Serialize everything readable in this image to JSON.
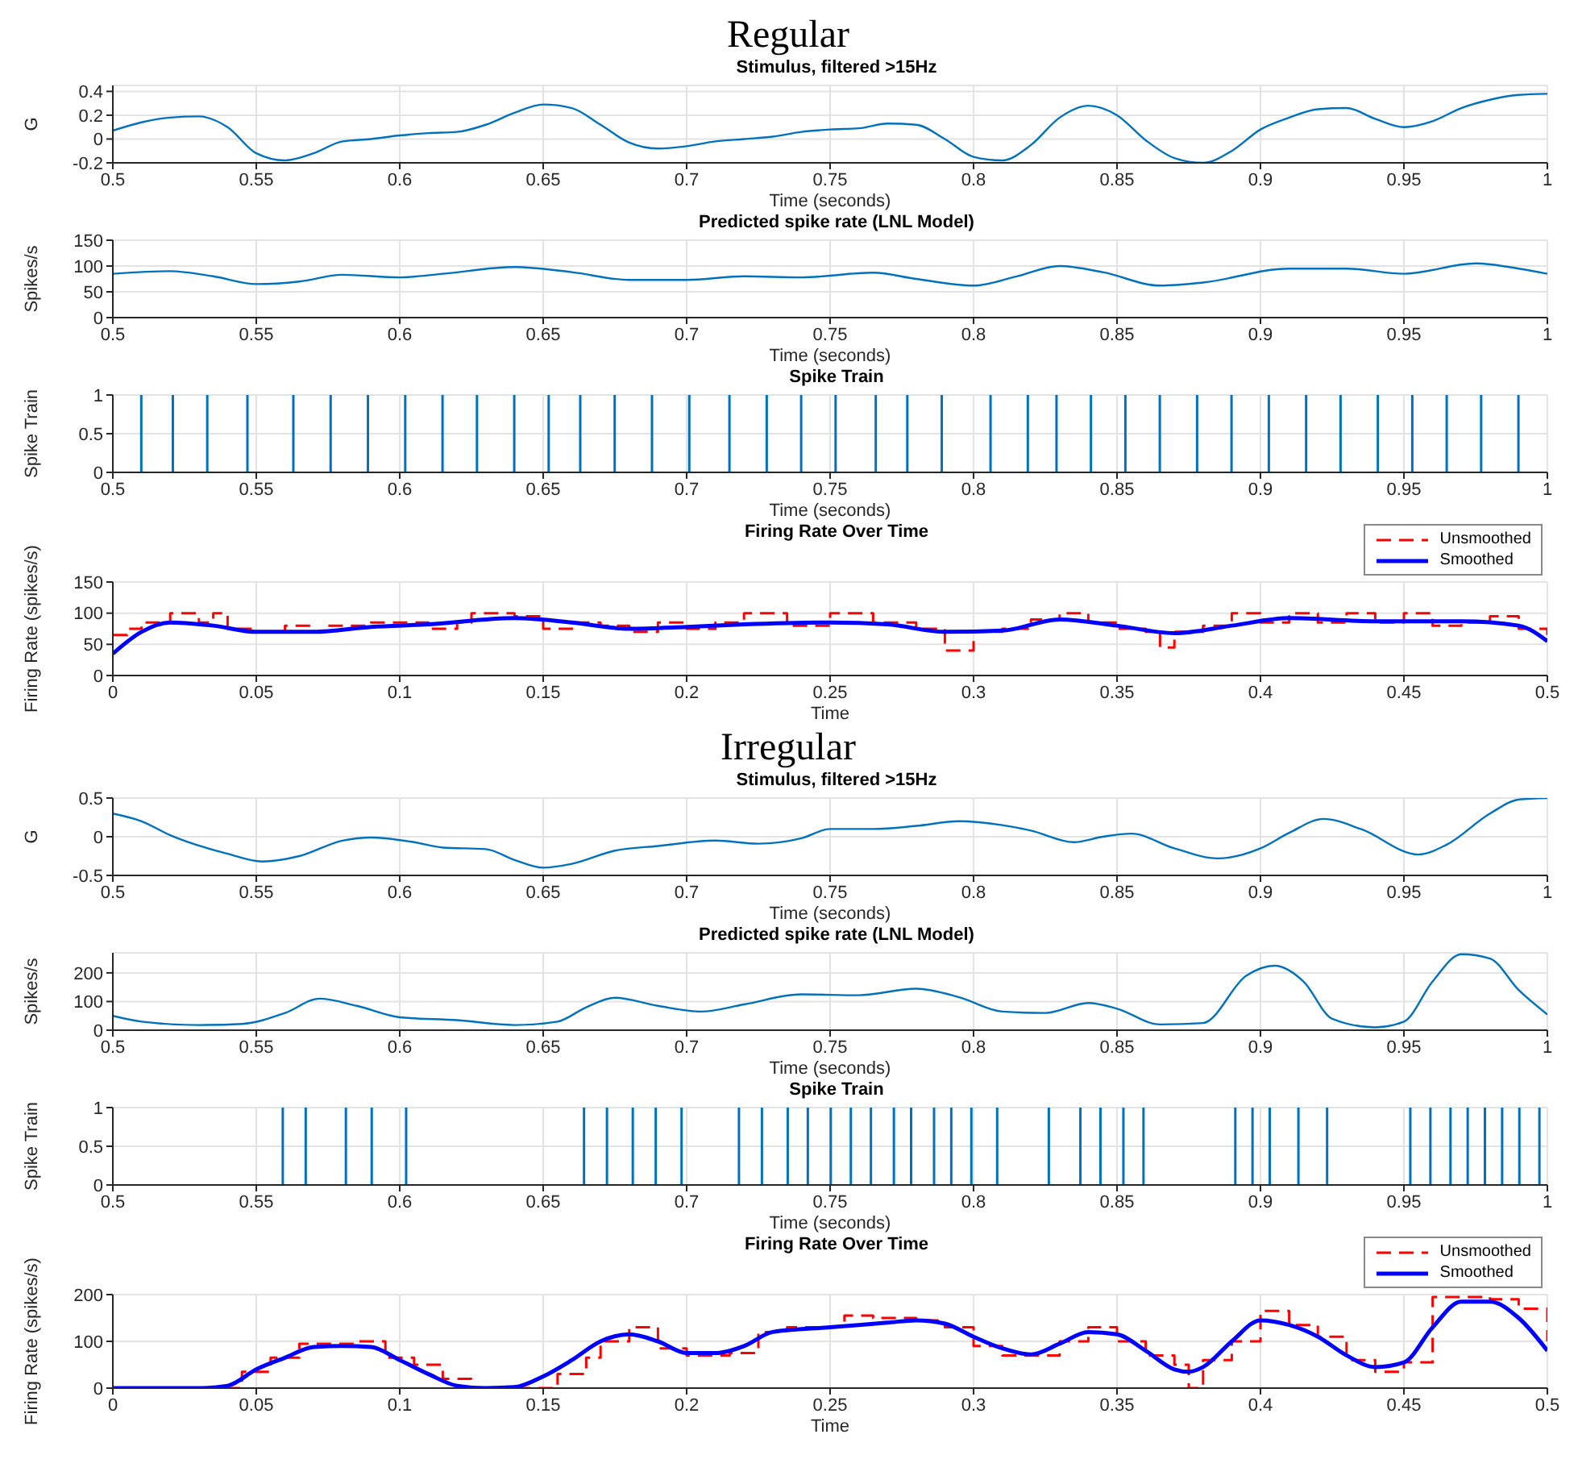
{
  "chart_data": [
    {
      "type": "line",
      "title": "Regular",
      "subtitle": "Stimulus, filtered >15Hz",
      "xlabel": "Time (seconds)",
      "ylabel": "G",
      "xlim": [
        0.5,
        1
      ],
      "xticks": [
        0.5,
        0.55,
        0.6,
        0.65,
        0.7,
        0.75,
        0.8,
        0.85,
        0.9,
        0.95,
        1
      ],
      "ylim": [
        -0.2,
        0.45
      ],
      "yticks": [
        -0.2,
        0,
        0.2,
        0.4
      ],
      "grid": true,
      "series": [
        {
          "color": "#0072bd",
          "x": [
            0.5,
            0.51,
            0.52,
            0.53,
            0.54,
            0.55,
            0.56,
            0.57,
            0.58,
            0.59,
            0.6,
            0.61,
            0.62,
            0.63,
            0.64,
            0.65,
            0.66,
            0.67,
            0.68,
            0.69,
            0.7,
            0.71,
            0.72,
            0.73,
            0.74,
            0.75,
            0.76,
            0.77,
            0.78,
            0.79,
            0.8,
            0.81,
            0.82,
            0.83,
            0.84,
            0.85,
            0.86,
            0.87,
            0.88,
            0.89,
            0.9,
            0.91,
            0.92,
            0.93,
            0.94,
            0.95,
            0.96,
            0.97,
            0.98,
            0.99,
            1
          ],
          "values": [
            0.07,
            0.14,
            0.18,
            0.19,
            0.1,
            -0.12,
            -0.18,
            -0.12,
            -0.02,
            0,
            0.03,
            0.05,
            0.06,
            0.12,
            0.22,
            0.29,
            0.26,
            0.12,
            -0.03,
            -0.08,
            -0.06,
            -0.02,
            0,
            0.02,
            0.06,
            0.08,
            0.09,
            0.13,
            0.12,
            0,
            -0.15,
            -0.18,
            -0.05,
            0.18,
            0.28,
            0.2,
            -0.01,
            -0.16,
            -0.2,
            -0.1,
            0.08,
            0.18,
            0.25,
            0.26,
            0.17,
            0.1,
            0.15,
            0.26,
            0.33,
            0.37,
            0.38
          ]
        }
      ]
    },
    {
      "type": "line",
      "title": "Predicted spike rate (LNL Model)",
      "xlabel": "Time (seconds)",
      "ylabel": "Spikes/s",
      "xlim": [
        0.5,
        1
      ],
      "xticks": [
        0.5,
        0.55,
        0.6,
        0.65,
        0.7,
        0.75,
        0.8,
        0.85,
        0.9,
        0.95,
        1
      ],
      "ylim": [
        0,
        150
      ],
      "yticks": [
        0,
        50,
        100,
        150
      ],
      "grid": true,
      "series": [
        {
          "color": "#0072bd",
          "x": [
            0.5,
            0.52,
            0.535,
            0.55,
            0.565,
            0.58,
            0.6,
            0.615,
            0.64,
            0.66,
            0.68,
            0.7,
            0.72,
            0.74,
            0.765,
            0.78,
            0.8,
            0.815,
            0.83,
            0.845,
            0.865,
            0.88,
            0.91,
            0.93,
            0.95,
            0.975,
            0.99,
            1
          ],
          "values": [
            85,
            90,
            80,
            65,
            70,
            83,
            78,
            85,
            98,
            88,
            73,
            73,
            80,
            78,
            87,
            75,
            62,
            80,
            100,
            88,
            62,
            68,
            95,
            95,
            85,
            105,
            95,
            85
          ]
        }
      ]
    },
    {
      "type": "bar",
      "title": "Spike Train",
      "xlabel": "Time (seconds)",
      "ylabel": "Spike Train",
      "xlim": [
        0.5,
        1
      ],
      "xticks": [
        0.5,
        0.55,
        0.6,
        0.65,
        0.7,
        0.75,
        0.8,
        0.85,
        0.9,
        0.95,
        1
      ],
      "ylim": [
        0,
        1
      ],
      "yticks": [
        0,
        0.5,
        1
      ],
      "grid": true,
      "series": [
        {
          "color": "#0072bd",
          "x": [
            0.51,
            0.521,
            0.533,
            0.547,
            0.563,
            0.576,
            0.589,
            0.602,
            0.615,
            0.627,
            0.64,
            0.652,
            0.663,
            0.675,
            0.688,
            0.701,
            0.715,
            0.728,
            0.74,
            0.752,
            0.766,
            0.777,
            0.789,
            0.806,
            0.819,
            0.829,
            0.841,
            0.853,
            0.865,
            0.878,
            0.89,
            0.903,
            0.916,
            0.928,
            0.941,
            0.953,
            0.965,
            0.977,
            0.99
          ],
          "values": [
            1,
            1,
            1,
            1,
            1,
            1,
            1,
            1,
            1,
            1,
            1,
            1,
            1,
            1,
            1,
            1,
            1,
            1,
            1,
            1,
            1,
            1,
            1,
            1,
            1,
            1,
            1,
            1,
            1,
            1,
            1,
            1,
            1,
            1,
            1,
            1,
            1,
            1,
            1
          ]
        }
      ]
    },
    {
      "type": "line",
      "title": "Firing Rate Over Time",
      "xlabel": "Time",
      "ylabel": "Firing Rate (spikes/s)",
      "xlim": [
        0,
        0.5
      ],
      "xticks": [
        0,
        0.05,
        0.1,
        0.15,
        0.2,
        0.25,
        0.3,
        0.35,
        0.4,
        0.45,
        0.5
      ],
      "ylim": [
        0,
        150
      ],
      "yticks": [
        0,
        50,
        100,
        150
      ],
      "grid": true,
      "legend": "top right",
      "series": [
        {
          "name": "Unsmoothed",
          "type": "step",
          "line_style": "dashed",
          "color": "#ff0000",
          "x": [
            0,
            0.005,
            0.01,
            0.02,
            0.03,
            0.035,
            0.04,
            0.05,
            0.06,
            0.07,
            0.075,
            0.09,
            0.1,
            0.11,
            0.12,
            0.125,
            0.135,
            0.14,
            0.15,
            0.16,
            0.17,
            0.18,
            0.19,
            0.2,
            0.21,
            0.22,
            0.235,
            0.25,
            0.265,
            0.28,
            0.29,
            0.3,
            0.31,
            0.32,
            0.33,
            0.34,
            0.35,
            0.36,
            0.365,
            0.37,
            0.38,
            0.39,
            0.4,
            0.41,
            0.42,
            0.43,
            0.44,
            0.45,
            0.46,
            0.47,
            0.48,
            0.49,
            0.5
          ],
          "values": [
            65,
            75,
            85,
            100,
            85,
            100,
            75,
            70,
            80,
            70,
            80,
            85,
            85,
            75,
            85,
            100,
            100,
            95,
            75,
            85,
            80,
            70,
            85,
            75,
            85,
            100,
            80,
            100,
            85,
            75,
            40,
            70,
            75,
            90,
            100,
            85,
            75,
            70,
            45,
            70,
            80,
            100,
            85,
            100,
            85,
            100,
            85,
            100,
            80,
            85,
            95,
            75,
            65
          ]
        },
        {
          "name": "Smoothed",
          "type": "line",
          "color": "#0000ff",
          "x": [
            0,
            0.01,
            0.02,
            0.035,
            0.05,
            0.07,
            0.09,
            0.11,
            0.14,
            0.16,
            0.18,
            0.2,
            0.22,
            0.25,
            0.27,
            0.29,
            0.31,
            0.33,
            0.35,
            0.37,
            0.39,
            0.41,
            0.44,
            0.47,
            0.49,
            0.5
          ],
          "values": [
            35,
            70,
            85,
            80,
            70,
            70,
            78,
            82,
            92,
            85,
            75,
            78,
            82,
            85,
            82,
            70,
            72,
            90,
            80,
            68,
            80,
            92,
            87,
            87,
            80,
            55
          ]
        }
      ]
    },
    {
      "type": "line",
      "title": "Irregular",
      "subtitle": "Stimulus, filtered >15Hz",
      "xlabel": "Time (seconds)",
      "ylabel": "G",
      "xlim": [
        0.5,
        1
      ],
      "xticks": [
        0.5,
        0.55,
        0.6,
        0.65,
        0.7,
        0.75,
        0.8,
        0.85,
        0.9,
        0.95,
        1
      ],
      "ylim": [
        -0.5,
        0.5
      ],
      "yticks": [
        -0.5,
        0,
        0.5
      ],
      "grid": true,
      "series": [
        {
          "color": "#0072bd",
          "x": [
            0.5,
            0.51,
            0.52,
            0.54,
            0.552,
            0.565,
            0.58,
            0.59,
            0.605,
            0.615,
            0.63,
            0.64,
            0.65,
            0.66,
            0.675,
            0.69,
            0.71,
            0.725,
            0.74,
            0.75,
            0.765,
            0.78,
            0.795,
            0.81,
            0.82,
            0.835,
            0.845,
            0.855,
            0.87,
            0.885,
            0.9,
            0.91,
            0.922,
            0.935,
            0.955,
            0.965,
            0.98,
            0.99,
            1
          ],
          "values": [
            0.3,
            0.2,
            0.02,
            -0.22,
            -0.32,
            -0.25,
            -0.05,
            -0.01,
            -0.07,
            -0.14,
            -0.16,
            -0.3,
            -0.4,
            -0.35,
            -0.18,
            -0.12,
            -0.05,
            -0.09,
            -0.02,
            0.1,
            0.1,
            0.14,
            0.2,
            0.15,
            0.08,
            -0.07,
            0,
            0.04,
            -0.15,
            -0.28,
            -0.15,
            0.05,
            0.23,
            0.1,
            -0.23,
            -0.1,
            0.3,
            0.48,
            0.5
          ]
        }
      ]
    },
    {
      "type": "line",
      "title": "Predicted spike rate (LNL Model)",
      "xlabel": "Time (seconds)",
      "ylabel": "Spikes/s",
      "xlim": [
        0.5,
        1
      ],
      "xticks": [
        0.5,
        0.55,
        0.6,
        0.65,
        0.7,
        0.75,
        0.8,
        0.85,
        0.9,
        0.95,
        1
      ],
      "ylim": [
        0,
        270
      ],
      "yticks": [
        0,
        100,
        200
      ],
      "grid": true,
      "series": [
        {
          "color": "#0072bd",
          "x": [
            0.5,
            0.51,
            0.53,
            0.545,
            0.56,
            0.572,
            0.585,
            0.6,
            0.62,
            0.64,
            0.655,
            0.665,
            0.675,
            0.69,
            0.705,
            0.72,
            0.74,
            0.76,
            0.78,
            0.795,
            0.81,
            0.825,
            0.84,
            0.85,
            0.865,
            0.88,
            0.895,
            0.905,
            0.915,
            0.925,
            0.94,
            0.95,
            0.96,
            0.97,
            0.98,
            0.99,
            1
          ],
          "values": [
            50,
            30,
            18,
            22,
            60,
            110,
            85,
            45,
            35,
            18,
            30,
            80,
            113,
            85,
            65,
            90,
            125,
            122,
            145,
            115,
            65,
            60,
            95,
            75,
            20,
            25,
            190,
            225,
            170,
            40,
            10,
            30,
            170,
            265,
            250,
            140,
            55
          ]
        }
      ]
    },
    {
      "type": "bar",
      "title": "Spike Train",
      "xlabel": "Time (seconds)",
      "ylabel": "Spike Train",
      "xlim": [
        0.5,
        1
      ],
      "xticks": [
        0.5,
        0.55,
        0.6,
        0.65,
        0.7,
        0.75,
        0.8,
        0.85,
        0.9,
        0.95,
        1
      ],
      "ylim": [
        0,
        1
      ],
      "yticks": [
        0,
        0.5,
        1
      ],
      "grid": true,
      "series": [
        {
          "color": "#0072bd",
          "x": [
            0.559,
            0.567,
            0.581,
            0.59,
            0.602,
            0.664,
            0.672,
            0.681,
            0.689,
            0.698,
            0.718,
            0.726,
            0.735,
            0.742,
            0.75,
            0.757,
            0.764,
            0.772,
            0.778,
            0.786,
            0.792,
            0.799,
            0.808,
            0.826,
            0.837,
            0.844,
            0.852,
            0.859,
            0.891,
            0.897,
            0.903,
            0.913,
            0.923,
            0.952,
            0.959,
            0.966,
            0.972,
            0.978,
            0.984,
            0.99,
            0.997
          ],
          "values": [
            1,
            1,
            1,
            1,
            1,
            1,
            1,
            1,
            1,
            1,
            1,
            1,
            1,
            1,
            1,
            1,
            1,
            1,
            1,
            1,
            1,
            1,
            1,
            1,
            1,
            1,
            1,
            1,
            1,
            1,
            1,
            1,
            1,
            1,
            1,
            1,
            1,
            1,
            1,
            1,
            1
          ]
        }
      ]
    },
    {
      "type": "line",
      "title": "Firing Rate Over Time",
      "xlabel": "Time",
      "ylabel": "Firing Rate (spikes/s)",
      "xlim": [
        0,
        0.5
      ],
      "xticks": [
        0,
        0.05,
        0.1,
        0.15,
        0.2,
        0.25,
        0.3,
        0.35,
        0.4,
        0.45,
        0.5
      ],
      "ylim": [
        0,
        200
      ],
      "yticks": [
        0,
        100,
        200
      ],
      "grid": true,
      "legend": "top right",
      "series": [
        {
          "name": "Unsmoothed",
          "type": "step",
          "line_style": "dashed",
          "color": "#ff0000",
          "x": [
            0,
            0.04,
            0.045,
            0.055,
            0.065,
            0.075,
            0.085,
            0.095,
            0.105,
            0.115,
            0.125,
            0.15,
            0.155,
            0.165,
            0.17,
            0.18,
            0.19,
            0.2,
            0.215,
            0.225,
            0.235,
            0.25,
            0.255,
            0.265,
            0.28,
            0.29,
            0.3,
            0.31,
            0.33,
            0.34,
            0.35,
            0.36,
            0.37,
            0.375,
            0.38,
            0.39,
            0.4,
            0.41,
            0.42,
            0.43,
            0.44,
            0.45,
            0.46,
            0.48,
            0.49,
            0.5
          ],
          "values": [
            0,
            0,
            35,
            65,
            95,
            95,
            100,
            65,
            50,
            20,
            0,
            0,
            30,
            65,
            100,
            130,
            85,
            70,
            75,
            120,
            130,
            130,
            155,
            150,
            145,
            130,
            90,
            70,
            100,
            130,
            100,
            70,
            50,
            0,
            60,
            100,
            165,
            135,
            110,
            60,
            35,
            55,
            195,
            190,
            170,
            100
          ]
        },
        {
          "name": "Smoothed",
          "type": "line",
          "color": "#0000ff",
          "x": [
            0,
            0.03,
            0.04,
            0.05,
            0.06,
            0.07,
            0.08,
            0.09,
            0.1,
            0.11,
            0.12,
            0.13,
            0.14,
            0.15,
            0.16,
            0.17,
            0.18,
            0.19,
            0.2,
            0.21,
            0.22,
            0.23,
            0.25,
            0.27,
            0.28,
            0.29,
            0.3,
            0.31,
            0.32,
            0.33,
            0.34,
            0.35,
            0.36,
            0.37,
            0.375,
            0.38,
            0.39,
            0.4,
            0.41,
            0.42,
            0.43,
            0.44,
            0.45,
            0.46,
            0.47,
            0.48,
            0.49,
            0.5
          ],
          "values": [
            0,
            0,
            5,
            40,
            65,
            88,
            90,
            88,
            60,
            30,
            5,
            0,
            2,
            25,
            60,
            100,
            115,
            100,
            75,
            75,
            90,
            120,
            130,
            140,
            145,
            138,
            110,
            85,
            72,
            95,
            120,
            115,
            80,
            40,
            35,
            45,
            100,
            145,
            135,
            110,
            70,
            45,
            55,
            130,
            185,
            185,
            150,
            80
          ]
        }
      ]
    }
  ]
}
